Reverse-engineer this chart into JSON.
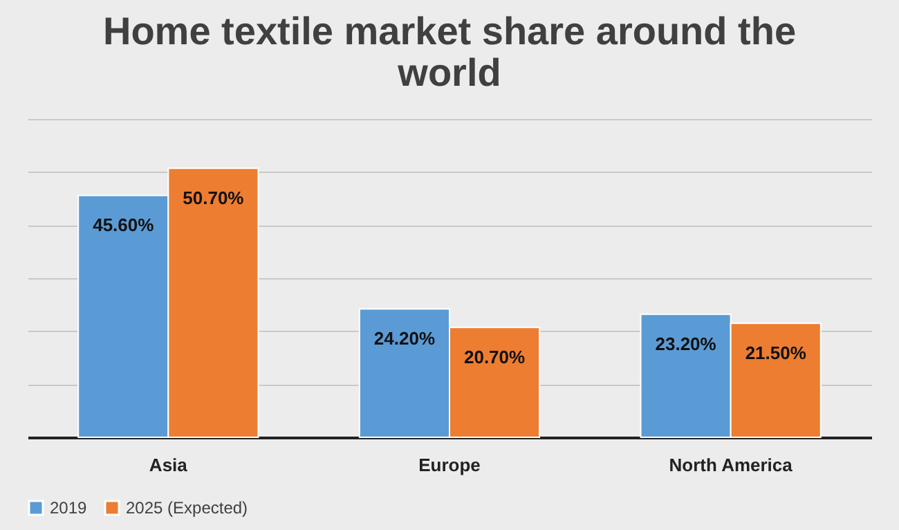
{
  "chart_data": {
    "type": "bar",
    "title": "Home textile market share around the world",
    "categories": [
      "Asia",
      "Europe",
      "North America"
    ],
    "series": [
      {
        "name": "2019",
        "color": "#5b9bd5",
        "values": [
          45.6,
          24.2,
          23.2
        ],
        "value_labels": [
          "45.60%",
          "24.20%",
          "23.20%"
        ]
      },
      {
        "name": "2025 (Expected)",
        "color": "#ed7d31",
        "values": [
          50.7,
          20.7,
          21.5
        ],
        "value_labels": [
          "50.70%",
          "20.70%",
          "21.50%"
        ]
      }
    ],
    "ylim": [
      0,
      60
    ],
    "yticks": [
      {
        "value": 0,
        "label": null
      },
      {
        "value": 10,
        "label": null
      },
      {
        "value": 20,
        "label": null
      },
      {
        "value": 30,
        "label": null
      },
      {
        "value": 40,
        "label": null
      },
      {
        "value": 50,
        "label": null
      },
      {
        "value": 60,
        "label": null
      }
    ],
    "tick_labels": "x",
    "grid": "y",
    "legend": "bottom"
  }
}
